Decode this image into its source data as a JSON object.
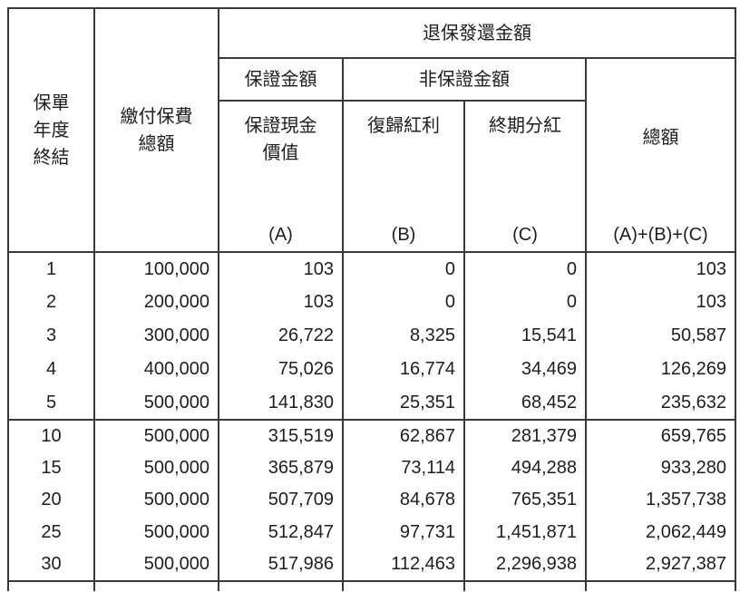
{
  "table": {
    "header": {
      "policy_year_lines": [
        "保單",
        "年度",
        "終結"
      ],
      "premium_lines": [
        "繳付保費",
        "總額"
      ],
      "surrender_group_label": "退保發還金額",
      "guaranteed_group_label": "保證金額",
      "non_guaranteed_group_label": "非保證金額",
      "guaranteed_cash_value_lines": [
        "保證現金",
        "價值"
      ],
      "guaranteed_cash_value_code": "(A)",
      "reversionary_bonus_label": "復歸紅利",
      "reversionary_bonus_code": "(B)",
      "terminal_dividend_label": "終期分紅",
      "terminal_dividend_code": "(C)",
      "total_label": "總額",
      "total_code": "(A)+(B)+(C)"
    },
    "blocks": [
      {
        "rows": [
          {
            "year": "1",
            "premium": "100,000",
            "gcv": "103",
            "rb": "0",
            "td": "0",
            "total": "103"
          },
          {
            "year": "2",
            "premium": "200,000",
            "gcv": "103",
            "rb": "0",
            "td": "0",
            "total": "103"
          },
          {
            "year": "3",
            "premium": "300,000",
            "gcv": "26,722",
            "rb": "8,325",
            "td": "15,541",
            "total": "50,587"
          },
          {
            "year": "4",
            "premium": "400,000",
            "gcv": "75,026",
            "rb": "16,774",
            "td": "34,469",
            "total": "126,269"
          },
          {
            "year": "5",
            "premium": "500,000",
            "gcv": "141,830",
            "rb": "25,351",
            "td": "68,452",
            "total": "235,632"
          }
        ]
      },
      {
        "rows": [
          {
            "year": "10",
            "premium": "500,000",
            "gcv": "315,519",
            "rb": "62,867",
            "td": "281,379",
            "total": "659,765"
          },
          {
            "year": "15",
            "premium": "500,000",
            "gcv": "365,879",
            "rb": "73,114",
            "td": "494,288",
            "total": "933,280"
          },
          {
            "year": "20",
            "premium": "500,000",
            "gcv": "507,709",
            "rb": "84,678",
            "td": "765,351",
            "total": "1,357,738"
          },
          {
            "year": "25",
            "premium": "500,000",
            "gcv": "512,847",
            "rb": "97,731",
            "td": "1,451,871",
            "total": "2,062,449"
          },
          {
            "year": "30",
            "premium": "500,000",
            "gcv": "517,986",
            "rb": "112,463",
            "td": "2,296,938",
            "total": "2,927,387"
          }
        ]
      }
    ]
  },
  "colors": {
    "border": "#3a3a3a",
    "text": "#1e1e1e",
    "background": "#ffffff"
  }
}
